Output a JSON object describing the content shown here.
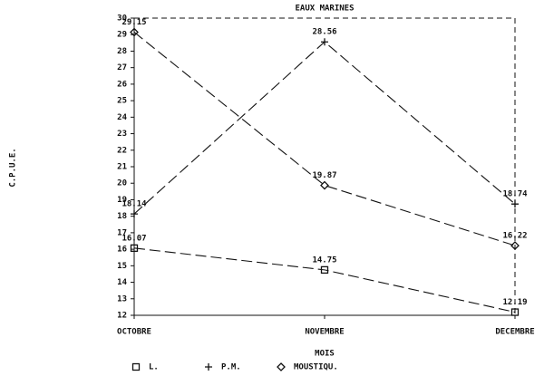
{
  "chart_data": {
    "type": "line",
    "title": "EAUX MARINES",
    "x_label": "MOIS",
    "y_label": "C.P.U.E.",
    "categories": [
      "OCTOBRE",
      "NOVEMBRE",
      "DECEMBRE"
    ],
    "series": [
      {
        "name": "L.",
        "marker": "square",
        "color": "#111111",
        "values": [
          16.07,
          14.75,
          12.19
        ]
      },
      {
        "name": "P.M.",
        "marker": "plus",
        "color": "#111111",
        "values": [
          18.14,
          28.56,
          18.74
        ]
      },
      {
        "name": "MOUSTIQU.",
        "marker": "diamond",
        "color": "#111111",
        "values": [
          29.15,
          19.87,
          16.22
        ]
      }
    ],
    "ylim": [
      12,
      30
    ],
    "yticks": [
      12,
      13,
      14,
      15,
      16,
      17,
      18,
      19,
      20,
      21,
      22,
      23,
      24,
      25,
      26,
      27,
      28,
      29,
      30
    ]
  }
}
